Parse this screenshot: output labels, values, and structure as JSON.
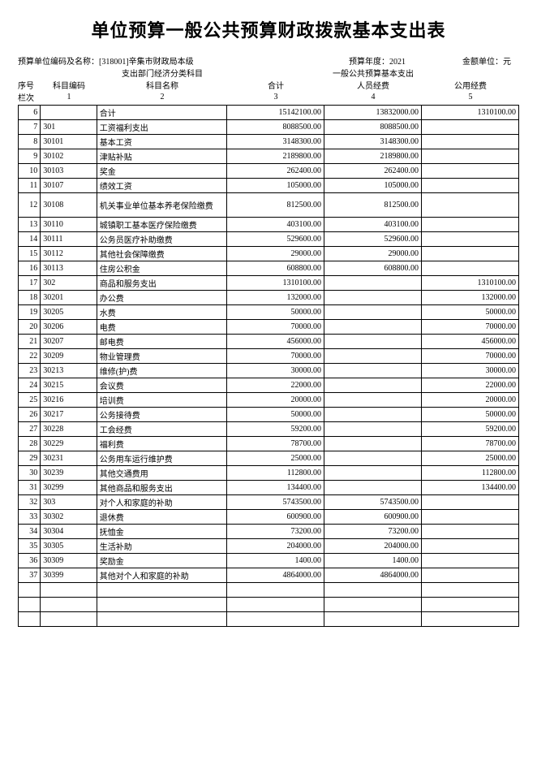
{
  "title": "单位预算一般公共预算财政拨款基本支出表",
  "meta": {
    "unit_label": "预算单位编码及名称：[318001]辛集市财政局本级",
    "year_label": "预算年度：2021",
    "amount_unit": "金额单位：元"
  },
  "header": {
    "group_left": "支出部门经济分类科目",
    "group_right": "一般公共预算基本支出",
    "seq": "序号",
    "code": "科目编码",
    "name": "科目名称",
    "total": "合计",
    "personnel": "人员经费",
    "public": "公用经费",
    "lanci": "栏次",
    "c1": "1",
    "c2": "2",
    "c3": "3",
    "c4": "4",
    "c5": "5"
  },
  "rows": [
    {
      "seq": "6",
      "code": "",
      "name": "合计",
      "total": "15142100.00",
      "pers": "13832000.00",
      "pub": "1310100.00"
    },
    {
      "seq": "7",
      "code": "301",
      "name": "工资福利支出",
      "total": "8088500.00",
      "pers": "8088500.00",
      "pub": ""
    },
    {
      "seq": "8",
      "code": "30101",
      "name": "基本工资",
      "total": "3148300.00",
      "pers": "3148300.00",
      "pub": ""
    },
    {
      "seq": "9",
      "code": "30102",
      "name": "津贴补贴",
      "total": "2189800.00",
      "pers": "2189800.00",
      "pub": ""
    },
    {
      "seq": "10",
      "code": "30103",
      "name": "奖金",
      "total": "262400.00",
      "pers": "262400.00",
      "pub": ""
    },
    {
      "seq": "11",
      "code": "30107",
      "name": "绩效工资",
      "total": "105000.00",
      "pers": "105000.00",
      "pub": ""
    },
    {
      "seq": "12",
      "code": "30108",
      "name": "机关事业单位基本养老保险缴费",
      "total": "812500.00",
      "pers": "812500.00",
      "pub": "",
      "tall": true
    },
    {
      "seq": "13",
      "code": "30110",
      "name": "城镇职工基本医疗保险缴费",
      "total": "403100.00",
      "pers": "403100.00",
      "pub": ""
    },
    {
      "seq": "14",
      "code": "30111",
      "name": "公务员医疗补助缴费",
      "total": "529600.00",
      "pers": "529600.00",
      "pub": ""
    },
    {
      "seq": "15",
      "code": "30112",
      "name": "其他社会保障缴费",
      "total": "29000.00",
      "pers": "29000.00",
      "pub": ""
    },
    {
      "seq": "16",
      "code": "30113",
      "name": "住房公积金",
      "total": "608800.00",
      "pers": "608800.00",
      "pub": ""
    },
    {
      "seq": "17",
      "code": "302",
      "name": "商品和服务支出",
      "total": "1310100.00",
      "pers": "",
      "pub": "1310100.00"
    },
    {
      "seq": "18",
      "code": "30201",
      "name": "办公费",
      "total": "132000.00",
      "pers": "",
      "pub": "132000.00"
    },
    {
      "seq": "19",
      "code": "30205",
      "name": "水费",
      "total": "50000.00",
      "pers": "",
      "pub": "50000.00"
    },
    {
      "seq": "20",
      "code": "30206",
      "name": "电费",
      "total": "70000.00",
      "pers": "",
      "pub": "70000.00"
    },
    {
      "seq": "21",
      "code": "30207",
      "name": "邮电费",
      "total": "456000.00",
      "pers": "",
      "pub": "456000.00"
    },
    {
      "seq": "22",
      "code": "30209",
      "name": "物业管理费",
      "total": "70000.00",
      "pers": "",
      "pub": "70000.00"
    },
    {
      "seq": "23",
      "code": "30213",
      "name": "维修(护)费",
      "total": "30000.00",
      "pers": "",
      "pub": "30000.00"
    },
    {
      "seq": "24",
      "code": "30215",
      "name": "会议费",
      "total": "22000.00",
      "pers": "",
      "pub": "22000.00"
    },
    {
      "seq": "25",
      "code": "30216",
      "name": "培训费",
      "total": "20000.00",
      "pers": "",
      "pub": "20000.00"
    },
    {
      "seq": "26",
      "code": "30217",
      "name": "公务接待费",
      "total": "50000.00",
      "pers": "",
      "pub": "50000.00"
    },
    {
      "seq": "27",
      "code": "30228",
      "name": "工会经费",
      "total": "59200.00",
      "pers": "",
      "pub": "59200.00"
    },
    {
      "seq": "28",
      "code": "30229",
      "name": "福利费",
      "total": "78700.00",
      "pers": "",
      "pub": "78700.00"
    },
    {
      "seq": "29",
      "code": "30231",
      "name": "公务用车运行维护费",
      "total": "25000.00",
      "pers": "",
      "pub": "25000.00"
    },
    {
      "seq": "30",
      "code": "30239",
      "name": "其他交通费用",
      "total": "112800.00",
      "pers": "",
      "pub": "112800.00"
    },
    {
      "seq": "31",
      "code": "30299",
      "name": "其他商品和服务支出",
      "total": "134400.00",
      "pers": "",
      "pub": "134400.00"
    },
    {
      "seq": "32",
      "code": "303",
      "name": "对个人和家庭的补助",
      "total": "5743500.00",
      "pers": "5743500.00",
      "pub": ""
    },
    {
      "seq": "33",
      "code": "30302",
      "name": "退休费",
      "total": "600900.00",
      "pers": "600900.00",
      "pub": ""
    },
    {
      "seq": "34",
      "code": "30304",
      "name": "抚恤金",
      "total": "73200.00",
      "pers": "73200.00",
      "pub": ""
    },
    {
      "seq": "35",
      "code": "30305",
      "name": "生活补助",
      "total": "204000.00",
      "pers": "204000.00",
      "pub": ""
    },
    {
      "seq": "36",
      "code": "30309",
      "name": "奖励金",
      "total": "1400.00",
      "pers": "1400.00",
      "pub": ""
    },
    {
      "seq": "37",
      "code": "30399",
      "name": "其他对个人和家庭的补助",
      "total": "4864000.00",
      "pers": "4864000.00",
      "pub": ""
    }
  ],
  "blank_rows": 3,
  "style": {
    "border_color": "#000000",
    "background": "#ffffff",
    "title_fontsize": 22,
    "body_fontsize": 10
  }
}
